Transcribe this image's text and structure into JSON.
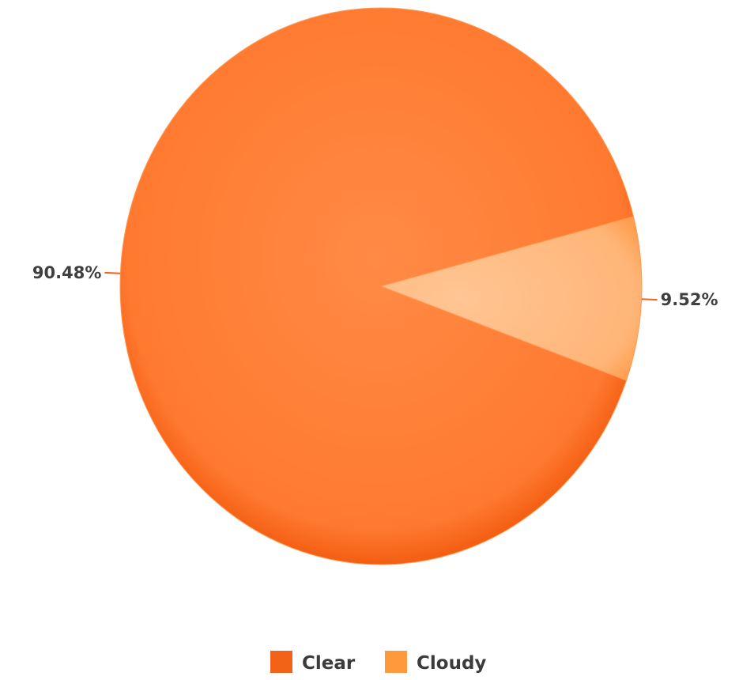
{
  "chart_data": {
    "type": "pie",
    "title": "",
    "slices": [
      {
        "label": "Clear",
        "value": 90.48,
        "value_label": "90.48%",
        "color": "#ff7f33"
      },
      {
        "label": "Cloudy",
        "value": 9.52,
        "value_label": "9.52%",
        "color": "#ffb982"
      }
    ],
    "legend": {
      "placement": "bottom-center",
      "items": [
        {
          "label": "Clear",
          "color": "#f26318"
        },
        {
          "label": "Cloudy",
          "color": "#ff9a3c"
        }
      ]
    },
    "data_labels": true
  }
}
